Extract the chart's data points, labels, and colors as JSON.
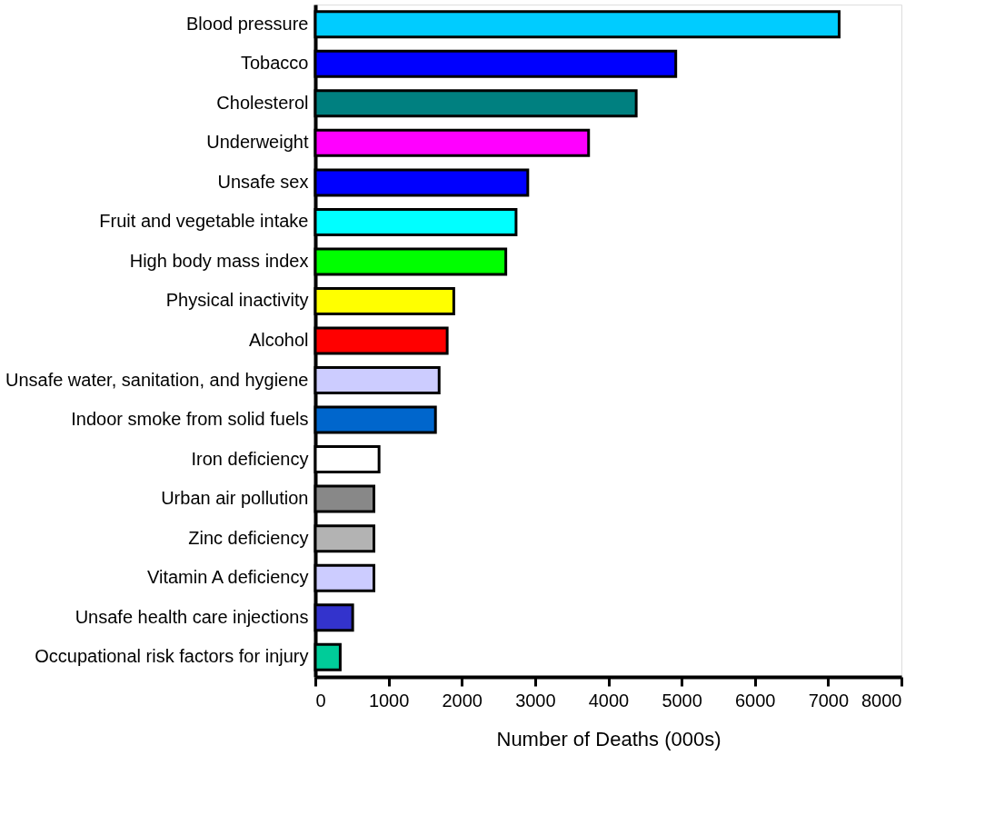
{
  "chart_data": {
    "type": "bar",
    "orientation": "horizontal",
    "xlabel": "Number of Deaths (000s)",
    "categories": [
      "Blood pressure",
      "Tobacco",
      "Cholesterol",
      "Underweight",
      "Unsafe sex",
      "Fruit and vegetable intake",
      "High body mass index",
      "Physical inactivity",
      "Alcohol",
      "Unsafe water, sanitation, and hygiene",
      "Indoor smoke from solid fuels",
      "Iron deficiency",
      "Urban air pollution",
      "Zinc deficiency",
      "Vitamin A deficiency",
      "Unsafe health care injections",
      "Occupational risk factors for injury"
    ],
    "values": [
      7150,
      4920,
      4380,
      3730,
      2900,
      2740,
      2600,
      1890,
      1800,
      1690,
      1640,
      870,
      800,
      800,
      800,
      510,
      340
    ],
    "colors": [
      "#00ccff",
      "#0000ff",
      "#008080",
      "#ff00ff",
      "#0000ff",
      "#00ffff",
      "#00ff00",
      "#ffff00",
      "#ff0000",
      "#ccccff",
      "#0066cc",
      "#ffffff",
      "#888888",
      "#b3b3b3",
      "#ccccff",
      "#3333cc",
      "#00cc99"
    ],
    "xlim": [
      0,
      8000
    ],
    "xticks": [
      0,
      1000,
      2000,
      3000,
      4000,
      5000,
      6000,
      7000,
      8000
    ],
    "grid": false
  }
}
